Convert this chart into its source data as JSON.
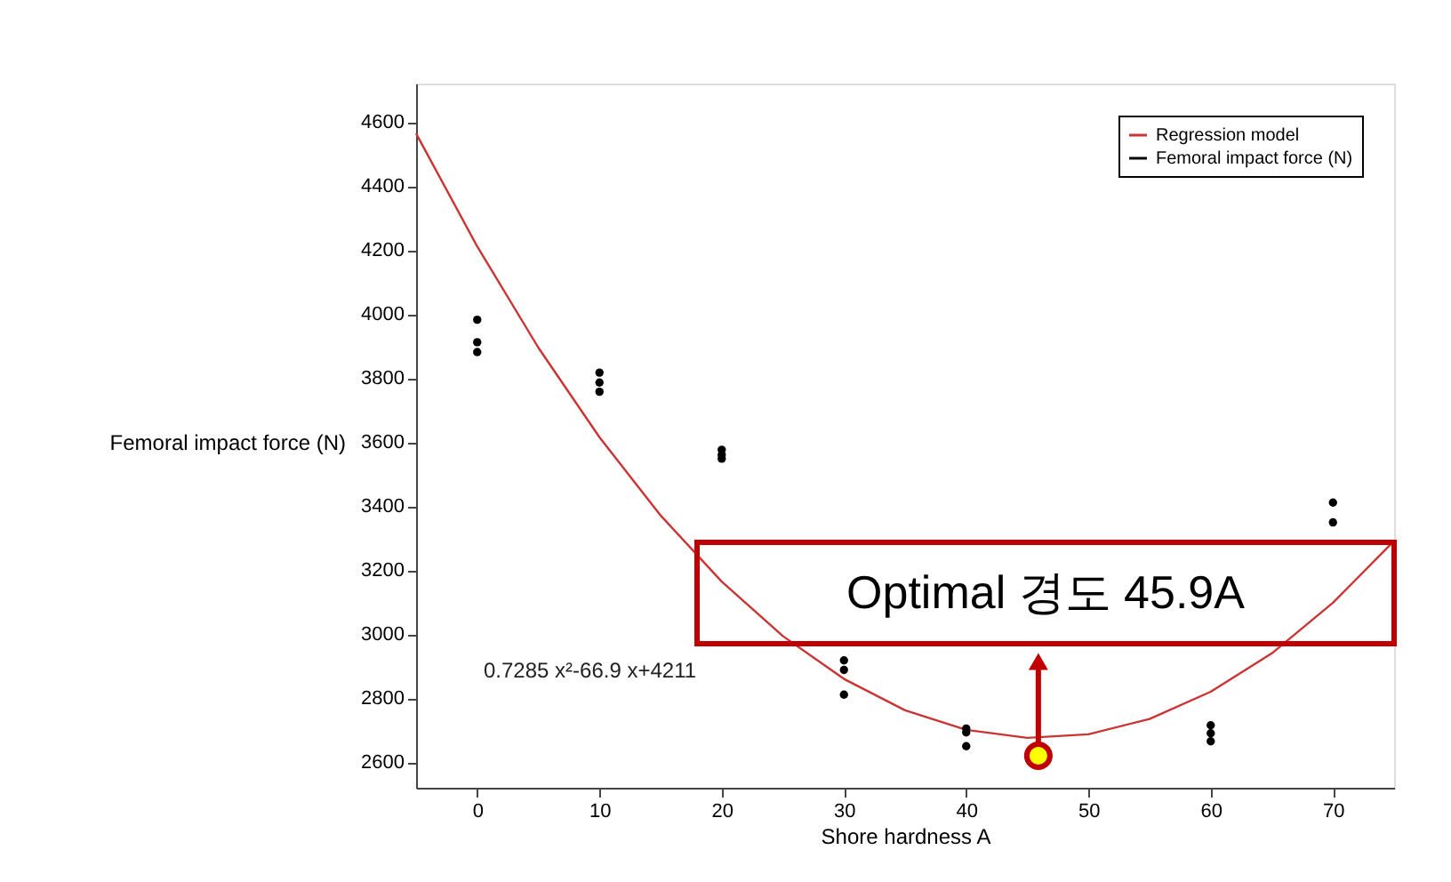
{
  "chart_data": {
    "type": "scatter",
    "xlabel": "Shore hardness A",
    "ylabel": "Femoral impact force (N)",
    "xlim": [
      -5,
      75
    ],
    "xticks": [
      0,
      10,
      20,
      30,
      40,
      50,
      60,
      70
    ],
    "ylim": [
      2520,
      4720
    ],
    "yticks": [
      2600,
      2800,
      3000,
      3200,
      3400,
      3600,
      3800,
      4000,
      4200,
      4400,
      4600
    ],
    "grid": false,
    "legend": "top right",
    "series": [
      {
        "name": "Regression model",
        "type": "line",
        "line_style": "solid",
        "marker": "none",
        "color": "#cc3333",
        "x": [
          -5,
          0,
          5,
          10,
          15,
          20,
          25,
          30,
          35,
          40,
          45,
          50,
          55,
          60,
          65,
          70,
          75
        ],
        "values": [
          4564,
          4211,
          3895,
          3615,
          3371,
          3164,
          2994,
          2860,
          2762,
          2701,
          2676,
          2687,
          2735,
          2820,
          2940,
          3098,
          3291
        ]
      },
      {
        "name": "Femoral impact force (N)",
        "marker": "circle",
        "color": "#000000",
        "x": [
          0,
          0,
          0,
          10,
          10,
          10,
          20,
          20,
          20,
          30,
          30,
          30,
          40,
          40,
          40,
          60,
          60,
          60,
          70,
          70
        ],
        "values": [
          3982,
          3912,
          3881,
          3817,
          3786,
          3757,
          3576,
          3560,
          3548,
          2918,
          2888,
          2811,
          2705,
          2693,
          2650,
          2715,
          2690,
          2665,
          3411,
          3349
        ]
      }
    ],
    "annotations": [
      "0.7285 x²-66.9 x+4211",
      {
        "text": "Optimal 경도 45.9A",
        "x": 45.9,
        "y": 2620
      }
    ]
  }
}
